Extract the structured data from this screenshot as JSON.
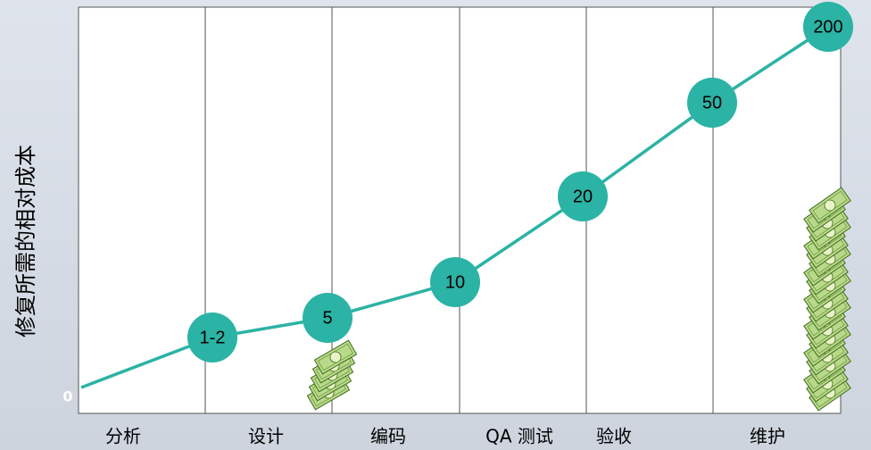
{
  "y_axis_label": "修复所需的相对成本",
  "origin_label": "0",
  "phases": [
    "分析",
    "设计",
    "编码",
    "QA 测试",
    "验收",
    "维护"
  ],
  "nodes": [
    {
      "label": "1-2"
    },
    {
      "label": "5"
    },
    {
      "label": "10"
    },
    {
      "label": "20"
    },
    {
      "label": "50"
    },
    {
      "label": "200"
    }
  ]
}
